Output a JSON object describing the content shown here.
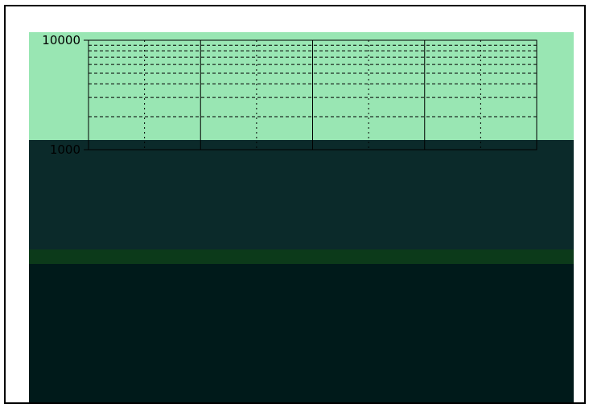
{
  "colors": {
    "band_top": "#99e6b3",
    "band_mid": "#0b2a2a",
    "band_low": "#0c3a1a",
    "band_bottom": "#001a1a",
    "grid": "#000000",
    "frame": "#000000"
  },
  "chart_data": {
    "type": "line",
    "y_scale": "log",
    "ylim": [
      1000,
      10000
    ],
    "y_ticks": [
      {
        "value": 10000,
        "label": "10000"
      },
      {
        "value": 1000,
        "label": "1000"
      }
    ],
    "x_gridlines": 8,
    "grid": true,
    "series": []
  }
}
